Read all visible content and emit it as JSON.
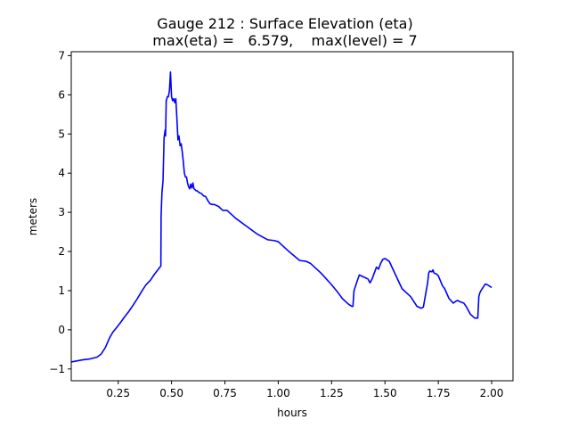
{
  "chart_data": {
    "type": "line",
    "title": "Gauge 212 : Surface Elevation (eta)",
    "subtitle": "max(eta) =   6.579,    max(level) = 7",
    "xlabel": "hours",
    "ylabel": "meters",
    "xlim": [
      0.03,
      2.1
    ],
    "ylim": [
      -1.3,
      7.1
    ],
    "xticks": [
      0.25,
      0.5,
      0.75,
      1.0,
      1.25,
      1.5,
      1.75,
      2.0
    ],
    "xtick_labels": [
      "0.25",
      "0.50",
      "0.75",
      "1.00",
      "1.25",
      "1.50",
      "1.75",
      "2.00"
    ],
    "yticks": [
      -1,
      0,
      1,
      2,
      3,
      4,
      5,
      6,
      7
    ],
    "ytick_labels": [
      "−1",
      "0",
      "1",
      "2",
      "3",
      "4",
      "5",
      "6",
      "7"
    ],
    "grid": false,
    "line_color": "#0000ff",
    "series": [
      {
        "x": [
          0.03,
          0.08,
          0.12,
          0.15,
          0.17,
          0.19,
          0.21,
          0.225,
          0.24,
          0.26,
          0.28,
          0.3,
          0.32,
          0.34,
          0.36,
          0.38,
          0.4,
          0.42,
          0.45,
          0.451,
          0.455,
          0.46,
          0.465,
          0.47,
          0.472,
          0.475,
          0.478,
          0.48,
          0.485,
          0.49,
          0.495,
          0.5,
          0.505,
          0.51,
          0.515,
          0.52,
          0.525,
          0.53,
          0.535,
          0.54,
          0.545,
          0.55,
          0.555,
          0.56,
          0.565,
          0.57,
          0.575,
          0.58,
          0.585,
          0.59,
          0.595,
          0.6,
          0.605,
          0.61,
          0.615,
          0.62,
          0.63,
          0.64,
          0.65,
          0.66,
          0.67,
          0.68,
          0.69,
          0.7,
          0.72,
          0.74,
          0.76,
          0.78,
          0.8,
          0.85,
          0.9,
          0.95,
          0.98,
          1.0,
          1.05,
          1.1,
          1.13,
          1.15,
          1.2,
          1.25,
          1.28,
          1.3,
          1.33,
          1.345,
          1.35,
          1.355,
          1.37,
          1.38,
          1.4,
          1.42,
          1.43,
          1.44,
          1.45,
          1.46,
          1.47,
          1.48,
          1.49,
          1.5,
          1.52,
          1.55,
          1.58,
          1.6,
          1.62,
          1.65,
          1.67,
          1.68,
          1.7,
          1.705,
          1.71,
          1.72,
          1.725,
          1.73,
          1.74,
          1.75,
          1.77,
          1.78,
          1.8,
          1.82,
          1.83,
          1.84,
          1.85,
          1.86,
          1.87,
          1.88,
          1.9,
          1.92,
          1.935,
          1.94,
          1.945,
          1.95,
          1.97,
          1.98,
          2.0
        ],
        "y": [
          -0.82,
          -0.77,
          -0.74,
          -0.7,
          -0.62,
          -0.45,
          -0.2,
          -0.06,
          0.04,
          0.18,
          0.33,
          0.47,
          0.63,
          0.8,
          0.98,
          1.15,
          1.26,
          1.42,
          1.63,
          2.9,
          3.5,
          3.8,
          4.9,
          5.1,
          4.95,
          5.85,
          5.9,
          5.95,
          5.95,
          6.1,
          6.58,
          5.95,
          5.85,
          5.9,
          5.8,
          5.9,
          5.4,
          4.85,
          4.95,
          4.7,
          4.75,
          4.55,
          4.3,
          4.0,
          3.9,
          3.9,
          3.75,
          3.65,
          3.6,
          3.72,
          3.62,
          3.75,
          3.6,
          3.58,
          3.55,
          3.55,
          3.5,
          3.48,
          3.42,
          3.4,
          3.3,
          3.22,
          3.2,
          3.2,
          3.15,
          3.05,
          3.05,
          2.95,
          2.85,
          2.65,
          2.45,
          2.3,
          2.28,
          2.25,
          2.0,
          1.77,
          1.75,
          1.7,
          1.45,
          1.15,
          0.95,
          0.8,
          0.65,
          0.6,
          0.6,
          1.0,
          1.25,
          1.4,
          1.35,
          1.3,
          1.2,
          1.3,
          1.45,
          1.6,
          1.55,
          1.7,
          1.8,
          1.82,
          1.75,
          1.4,
          1.05,
          0.95,
          0.85,
          0.6,
          0.55,
          0.58,
          1.2,
          1.45,
          1.5,
          1.48,
          1.53,
          1.45,
          1.43,
          1.38,
          1.12,
          1.05,
          0.8,
          0.68,
          0.72,
          0.75,
          0.72,
          0.7,
          0.68,
          0.6,
          0.4,
          0.3,
          0.3,
          0.85,
          0.95,
          1.0,
          1.17,
          1.15,
          1.08
        ]
      }
    ]
  }
}
